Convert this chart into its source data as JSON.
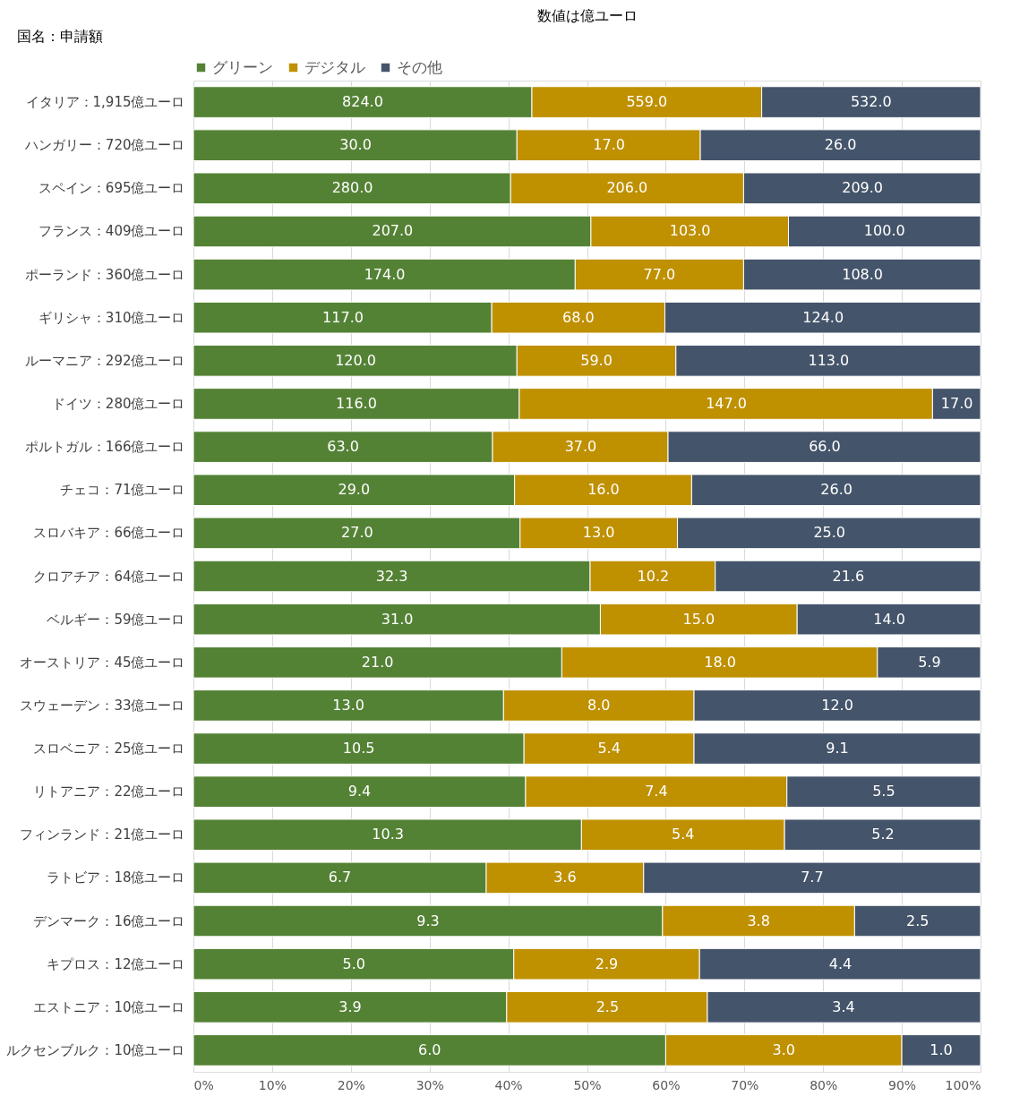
{
  "chart_data": {
    "type": "bar",
    "orientation": "horizontal",
    "stacked": true,
    "title": "数値は億ユーロ",
    "ylabel": "国名：申請額",
    "categories": [
      "イタリア：1,915億ユーロ",
      "ハンガリー：720億ユーロ",
      "スペイン：695億ユーロ",
      "フランス：409億ユーロ",
      "ポーランド：360億ユーロ",
      "ギリシャ：310億ユーロ",
      "ルーマニア：292億ユーロ",
      "ドイツ：280億ユーロ",
      "ポルトガル：166億ユーロ",
      "チェコ：71億ユーロ",
      "スロバキア：66億ユーロ",
      "クロアチア：64億ユーロ",
      "ベルギー：59億ユーロ",
      "オーストリア：45億ユーロ",
      "スウェーデン：33億ユーロ",
      "スロベニア：25億ユーロ",
      "リトアニア：22億ユーロ",
      "フィンランド：21億ユーロ",
      "ラトビア：18億ユーロ",
      "デンマーク：16億ユーロ",
      "キプロス：12億ユーロ",
      "エストニア：10億ユーロ",
      "ルクセンブルク：10億ユーロ"
    ],
    "series": [
      {
        "name": "グリーン",
        "color": "#548235",
        "values": [
          43.0,
          41.1,
          40.3,
          50.5,
          48.5,
          37.9,
          41.1,
          41.4,
          38.0,
          40.8,
          41.5,
          50.4,
          51.7,
          46.8,
          39.4,
          42.0,
          42.2,
          49.3,
          37.2,
          59.6,
          40.7,
          39.8,
          60.0
        ]
      },
      {
        "name": "デジタル",
        "color": "#bf9000",
        "values": [
          29.2,
          23.3,
          29.6,
          25.1,
          21.4,
          22.0,
          20.2,
          52.5,
          22.3,
          22.5,
          20.0,
          15.9,
          25.0,
          40.1,
          24.2,
          21.6,
          33.2,
          25.8,
          20.0,
          24.4,
          23.6,
          25.5,
          30.0
        ]
      },
      {
        "name": "その他",
        "color": "#44546a",
        "values": [
          27.8,
          35.6,
          30.1,
          24.4,
          30.1,
          40.1,
          38.7,
          6.1,
          39.7,
          36.7,
          38.5,
          33.7,
          23.3,
          13.1,
          36.4,
          36.4,
          24.6,
          24.9,
          42.8,
          16.0,
          35.7,
          34.7,
          10.0
        ]
      }
    ],
    "annotations": [
      {
        "text": "824.0",
        "x": 21.5,
        "y": "イタリア：1,915億ユーロ"
      },
      {
        "text": "559.0",
        "x": 57.6,
        "y": "イタリア：1,915億ユーロ"
      },
      {
        "text": "532.0",
        "x": 86.1,
        "y": "イタリア：1,915億ユーロ"
      },
      {
        "text": "30.0",
        "x": 20.6,
        "y": "ハンガリー：720億ユーロ"
      },
      {
        "text": "17.0",
        "x": 52.8,
        "y": "ハンガリー：720億ユーロ"
      },
      {
        "text": "26.0",
        "x": 82.2,
        "y": "ハンガリー：720億ユーロ"
      },
      {
        "text": "280.0",
        "x": 20.2,
        "y": "スペイン：695億ユーロ"
      },
      {
        "text": "206.0",
        "x": 55.1,
        "y": "スペイン：695億ユーロ"
      },
      {
        "text": "209.0",
        "x": 85.0,
        "y": "スペイン：695億ユーロ"
      },
      {
        "text": "207.0",
        "x": 25.3,
        "y": "フランス：409億ユーロ"
      },
      {
        "text": "103.0",
        "x": 63.1,
        "y": "フランス：409億ユーロ"
      },
      {
        "text": "100.0",
        "x": 87.8,
        "y": "フランス：409億ユーロ"
      },
      {
        "text": "174.0",
        "x": 24.3,
        "y": "ポーランド：360億ユーロ"
      },
      {
        "text": "77.0",
        "x": 59.2,
        "y": "ポーランド：360億ユーロ"
      },
      {
        "text": "108.0",
        "x": 85.0,
        "y": "ポーランド：360億ユーロ"
      },
      {
        "text": "117.0",
        "x": 19.0,
        "y": "ギリシャ：310億ユーロ"
      },
      {
        "text": "68.0",
        "x": 48.9,
        "y": "ギリシャ：310億ユーロ"
      },
      {
        "text": "124.0",
        "x": 80.0,
        "y": "ギリシャ：310億ユーロ"
      },
      {
        "text": "120.0",
        "x": 20.6,
        "y": "ルーマニア：292億ユーロ"
      },
      {
        "text": "59.0",
        "x": 51.2,
        "y": "ルーマニア：292億ユーロ"
      },
      {
        "text": "113.0",
        "x": 80.7,
        "y": "ルーマニア：292億ユーロ"
      },
      {
        "text": "116.0",
        "x": 20.7,
        "y": "ドイツ：280億ユーロ"
      },
      {
        "text": "147.0",
        "x": 67.7,
        "y": "ドイツ：280億ユーロ"
      },
      {
        "text": "17.0",
        "x": 97.0,
        "y": "ドイツ：280億ユーロ"
      },
      {
        "text": "63.0",
        "x": 19.0,
        "y": "ポルトガル：166億ユーロ"
      },
      {
        "text": "37.0",
        "x": 49.2,
        "y": "ポルトガル：166億ユーロ"
      },
      {
        "text": "66.0",
        "x": 80.2,
        "y": "ポルトガル：166億ユーロ"
      },
      {
        "text": "29.0",
        "x": 20.4,
        "y": "チェコ：71億ユーロ"
      },
      {
        "text": "16.0",
        "x": 52.1,
        "y": "チェコ：71億ユーロ"
      },
      {
        "text": "26.0",
        "x": 81.7,
        "y": "チェコ：71億ユーロ"
      },
      {
        "text": "27.0",
        "x": 20.8,
        "y": "スロバキア：66億ユーロ"
      },
      {
        "text": "13.0",
        "x": 51.5,
        "y": "スロバキア：66億ユーロ"
      },
      {
        "text": "25.0",
        "x": 80.8,
        "y": "スロバキア：66億ユーロ"
      },
      {
        "text": "32.3",
        "x": 25.2,
        "y": "クロアチア：64億ユーロ"
      },
      {
        "text": "10.2",
        "x": 58.4,
        "y": "クロアチア：64億ユーロ"
      },
      {
        "text": "21.6",
        "x": 83.2,
        "y": "クロアチア：64億ユーロ"
      },
      {
        "text": "31.0",
        "x": 25.9,
        "y": "ベルギー：59億ユーロ"
      },
      {
        "text": "15.0",
        "x": 64.2,
        "y": "ベルギー：59億ユーロ"
      },
      {
        "text": "14.0",
        "x": 88.4,
        "y": "ベルギー：59億ユーロ"
      },
      {
        "text": "21.0",
        "x": 23.4,
        "y": "オーストリア：45億ユーロ"
      },
      {
        "text": "18.0",
        "x": 66.9,
        "y": "オーストリア：45億ユーロ"
      },
      {
        "text": "5.9",
        "x": 93.5,
        "y": "オーストリア：45億ユーロ"
      },
      {
        "text": "13.0",
        "x": 19.7,
        "y": "スウェーデン：33億ユーロ"
      },
      {
        "text": "8.0",
        "x": 51.5,
        "y": "スウェーデン：33億ユーロ"
      },
      {
        "text": "12.0",
        "x": 81.8,
        "y": "スウェーデン：33億ユーロ"
      },
      {
        "text": "10.5",
        "x": 21.0,
        "y": "スロベニア：25億ユーロ"
      },
      {
        "text": "5.4",
        "x": 52.8,
        "y": "スロベニア：25億ユーロ"
      },
      {
        "text": "9.1",
        "x": 81.8,
        "y": "スロベニア：25億ユーロ"
      },
      {
        "text": "9.4",
        "x": 21.1,
        "y": "リトアニア：22億ユーロ"
      },
      {
        "text": "7.4",
        "x": 58.8,
        "y": "リトアニア：22億ユーロ"
      },
      {
        "text": "5.5",
        "x": 87.7,
        "y": "リトアニア：22億ユーロ"
      },
      {
        "text": "10.3",
        "x": 24.7,
        "y": "フィンランド：21億ユーロ"
      },
      {
        "text": "5.4",
        "x": 62.2,
        "y": "フィンランド：21億ユーロ"
      },
      {
        "text": "5.2",
        "x": 87.6,
        "y": "フィンランド：21億ユーロ"
      },
      {
        "text": "6.7",
        "x": 18.6,
        "y": "ラトビア：18億ユーロ"
      },
      {
        "text": "3.6",
        "x": 47.2,
        "y": "ラトビア：18億ユーロ"
      },
      {
        "text": "7.7",
        "x": 78.6,
        "y": "ラトビア：18億ユーロ"
      },
      {
        "text": "9.3",
        "x": 29.8,
        "y": "デンマーク：16億ユーロ"
      },
      {
        "text": "3.8",
        "x": 71.8,
        "y": "デンマーク：16億ユーロ"
      },
      {
        "text": "2.5",
        "x": 92.0,
        "y": "デンマーク：16億ユーロ"
      },
      {
        "text": "5.0",
        "x": 20.4,
        "y": "キプロス：12億ユーロ"
      },
      {
        "text": "2.9",
        "x": 52.5,
        "y": "キプロス：12億ユーロ"
      },
      {
        "text": "4.4",
        "x": 82.2,
        "y": "キプロス：12億ユーロ"
      },
      {
        "text": "3.9",
        "x": 19.9,
        "y": "エストニア：10億ユーロ"
      },
      {
        "text": "2.5",
        "x": 52.6,
        "y": "エストニア：10億ユーロ"
      },
      {
        "text": "3.4",
        "x": 82.6,
        "y": "エストニア：10億ユーロ"
      },
      {
        "text": "6.0",
        "x": 30.0,
        "y": "ルクセンブルク：10億ユーロ"
      },
      {
        "text": "3.0",
        "x": 75.0,
        "y": "ルクセンブルク：10億ユーロ"
      },
      {
        "text": "1.0",
        "x": 95.0,
        "y": "ルクセンブルク：10億ユーロ"
      }
    ],
    "xlim": [
      0,
      100
    ],
    "xticks": [
      {
        "value": 0,
        "label": "0%"
      },
      {
        "value": 10,
        "label": "10%"
      },
      {
        "value": 20,
        "label": "20%"
      },
      {
        "value": 30,
        "label": "30%"
      },
      {
        "value": 40,
        "label": "40%"
      },
      {
        "value": 50,
        "label": "50%"
      },
      {
        "value": 60,
        "label": "60%"
      },
      {
        "value": 70,
        "label": "70%"
      },
      {
        "value": 80,
        "label": "80%"
      },
      {
        "value": 90,
        "label": "90%"
      },
      {
        "value": 100,
        "label": "100%"
      }
    ],
    "grid": "x",
    "legend": "top"
  }
}
